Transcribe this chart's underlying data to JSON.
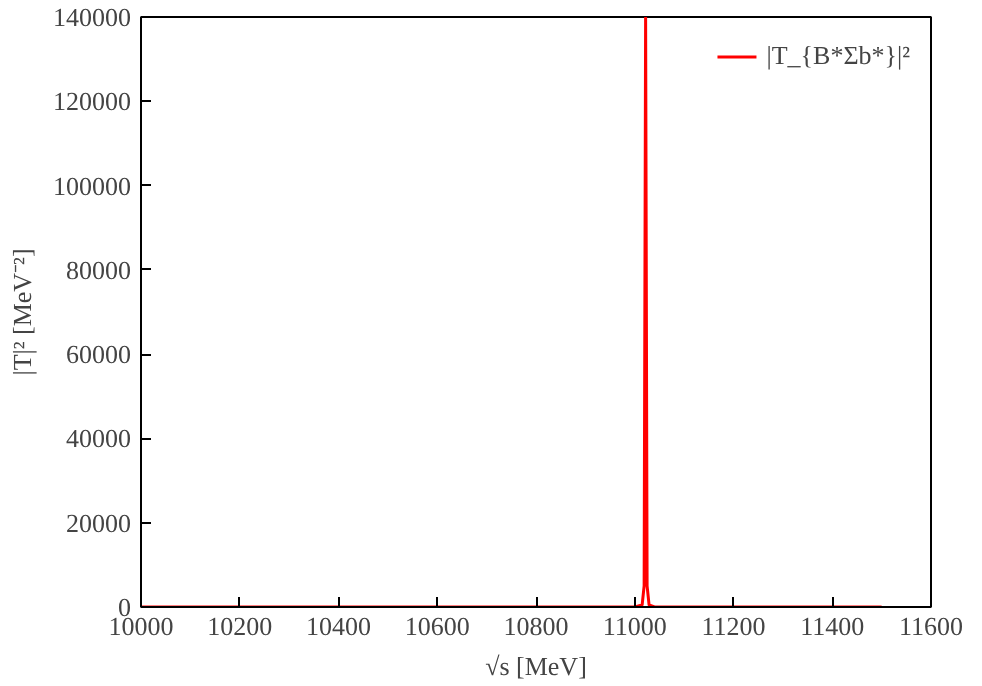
{
  "chart_data": {
    "type": "line",
    "xlabel": "√s [MeV]",
    "ylabel": "|T|² [MeV⁻²]",
    "series": [
      {
        "name": "|T_{B*Σb*}|²",
        "color": "#ff0000",
        "x": [
          10000,
          10500,
          11000,
          11015,
          11019,
          11022,
          11025,
          11029,
          11040,
          11200,
          11500
        ],
        "values": [
          0,
          0,
          0,
          500,
          5000,
          140000,
          5000,
          500,
          0,
          0,
          0
        ]
      }
    ],
    "xlim": [
      10000,
      11600
    ],
    "ylim": [
      0,
      140000
    ],
    "xticks": [
      10000,
      10200,
      10400,
      10600,
      10800,
      11000,
      11200,
      11400,
      11600
    ],
    "yticks": [
      0,
      20000,
      40000,
      60000,
      80000,
      100000,
      120000,
      140000
    ],
    "grid": false,
    "legend": "top right",
    "line_style": "solid"
  }
}
